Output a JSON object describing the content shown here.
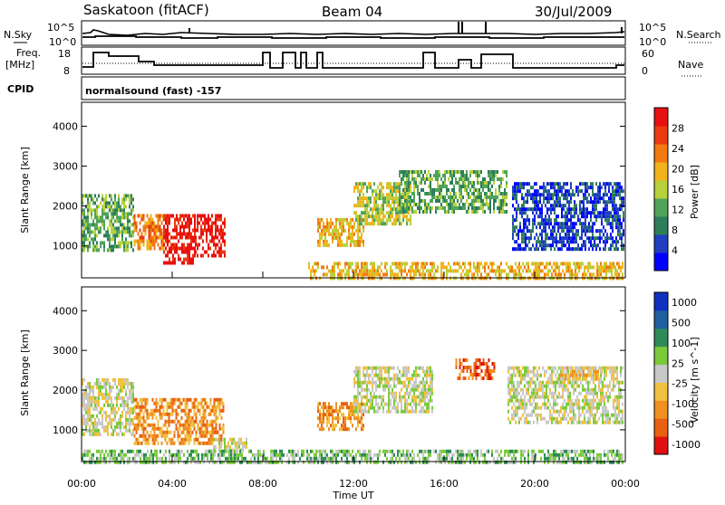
{
  "header": {
    "station": "Saskatoon (fitACF)",
    "beam": "Beam 04",
    "date": "30/Jul/2009"
  },
  "nsky_panel": {
    "left_label": "N.Sky",
    "left_ticks": [
      "10^5",
      "10^0"
    ],
    "right_label": "N.Search",
    "right_ticks": [
      "10^5",
      "10^0"
    ]
  },
  "freq_panel": {
    "left_label_1": "Freq.",
    "left_label_2": "[MHz]",
    "left_ticks": [
      "18",
      "8"
    ],
    "right_label": "Nave",
    "right_ticks": [
      "60",
      "0"
    ]
  },
  "cpid": {
    "label": "CPID",
    "value": "normalsound (fast) -157"
  },
  "colors": {
    "power_scale": [
      "#0000ff",
      "#1f3fbf",
      "#2e7d5a",
      "#4fa35a",
      "#b8d13a",
      "#f2b21a",
      "#f07a10",
      "#e83c10",
      "#e81010"
    ],
    "velocity_scale": [
      "#1030c0",
      "#2060a0",
      "#2e8b57",
      "#7acb3a",
      "#c8c8c8",
      "#f0c040",
      "#f09020",
      "#e86010",
      "#e01010"
    ]
  },
  "chart_data": [
    {
      "type": "heatmap",
      "name": "Power",
      "ylabel": "Slant Range [km]",
      "yticks": [
        "1000",
        "2000",
        "3000",
        "4000"
      ],
      "ylim": [
        200,
        4600
      ],
      "xlim": [
        0,
        24
      ],
      "colorbar_label": "Power [dB]",
      "colorbar_ticks": [
        "4",
        "8",
        "12",
        "16",
        "20",
        "24",
        "28"
      ],
      "regions": [
        {
          "t0": 0.0,
          "t1": 2.3,
          "r0": 900,
          "r1": 2300,
          "level": 3
        },
        {
          "t0": 2.3,
          "t1": 3.6,
          "r0": 900,
          "r1": 1800,
          "level": 6
        },
        {
          "t0": 3.6,
          "t1": 5.0,
          "r0": 600,
          "r1": 1800,
          "level": 8
        },
        {
          "t0": 5.0,
          "t1": 6.3,
          "r0": 800,
          "r1": 1800,
          "level": 8
        },
        {
          "t0": 10.4,
          "t1": 12.4,
          "r0": 1000,
          "r1": 1700,
          "level": 5
        },
        {
          "t0": 12.0,
          "t1": 14.5,
          "r0": 1600,
          "r1": 2600,
          "level": 4
        },
        {
          "t0": 14.0,
          "t1": 18.8,
          "r0": 1900,
          "r1": 2900,
          "level": 3
        },
        {
          "t0": 19.0,
          "t1": 23.9,
          "r0": 900,
          "r1": 2600,
          "level": 1
        },
        {
          "t0": 10.0,
          "t1": 23.9,
          "r0": 200,
          "r1": 600,
          "level": 5
        }
      ]
    },
    {
      "type": "heatmap",
      "name": "Velocity",
      "ylabel": "Slant Range [km]",
      "yticks": [
        "1000",
        "2000",
        "3000",
        "4000"
      ],
      "ylim": [
        200,
        4600
      ],
      "xlim": [
        0,
        24
      ],
      "xlabel": "Time UT",
      "xticks": [
        "00:00",
        "04:00",
        "08:00",
        "12:00",
        "16:00",
        "20:00",
        "00:00"
      ],
      "colorbar_label": "Velocity [m s^-1]",
      "colorbar_ticks": [
        "1000",
        "500",
        "100",
        "25",
        "-25",
        "-100",
        "-500",
        "-1000"
      ],
      "regions": [
        {
          "t0": 0.0,
          "t1": 2.3,
          "r0": 900,
          "r1": 2300,
          "level": 4
        },
        {
          "t0": 2.3,
          "t1": 6.3,
          "r0": 700,
          "r1": 1800,
          "level": 6
        },
        {
          "t0": 5.8,
          "t1": 7.3,
          "r0": 500,
          "r1": 800,
          "level": 4
        },
        {
          "t0": 10.4,
          "t1": 12.4,
          "r0": 1000,
          "r1": 1700,
          "level": 6
        },
        {
          "t0": 12.0,
          "t1": 15.5,
          "r0": 1500,
          "r1": 2600,
          "level": 4
        },
        {
          "t0": 16.5,
          "t1": 18.2,
          "r0": 2300,
          "r1": 2800,
          "level": 7
        },
        {
          "t0": 18.8,
          "t1": 23.9,
          "r0": 1200,
          "r1": 2600,
          "level": 4
        },
        {
          "t0": 21.0,
          "t1": 23.0,
          "r0": 2300,
          "r1": 2600,
          "level": 5
        },
        {
          "t0": 0.0,
          "t1": 23.9,
          "r0": 200,
          "r1": 500,
          "level": 3
        }
      ]
    }
  ]
}
